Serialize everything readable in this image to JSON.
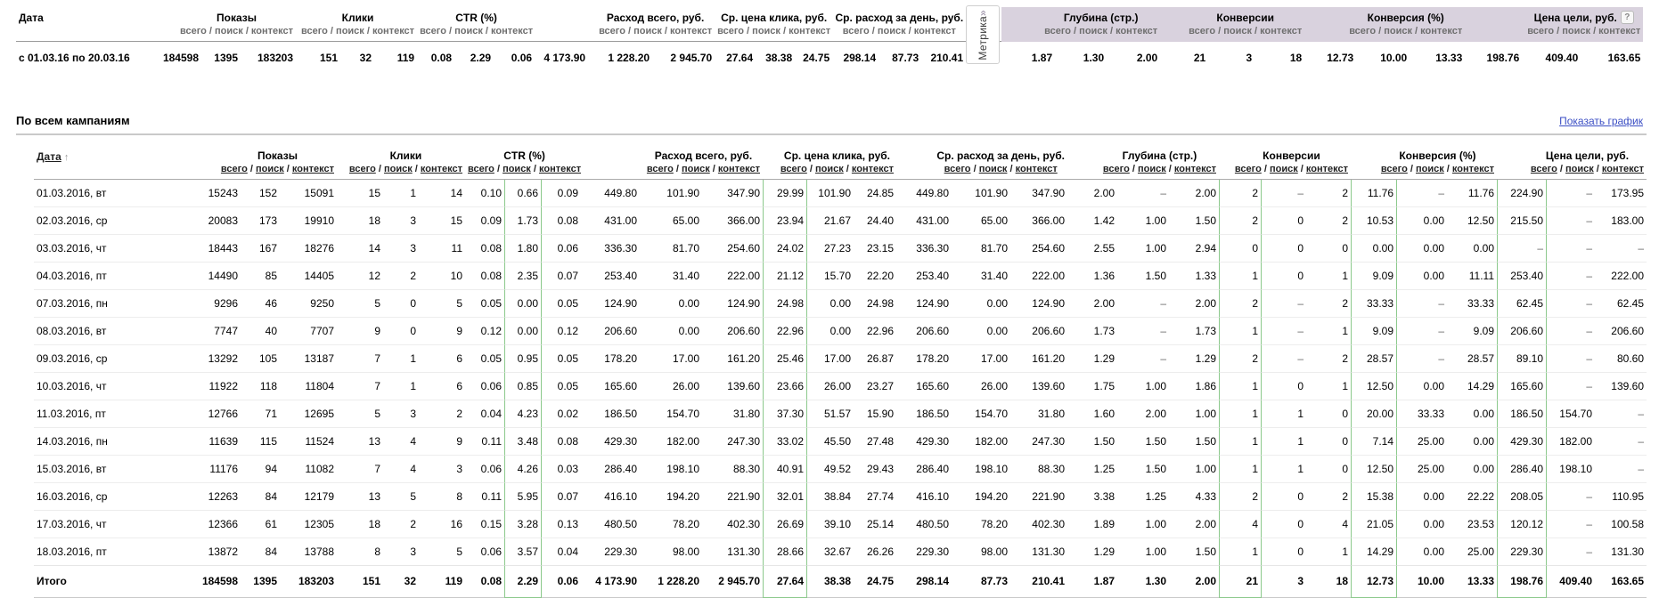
{
  "labels": {
    "date_header": "Дата",
    "sort_arrow": "↑",
    "subheader": {
      "total": "всего",
      "search": "поиск",
      "context": "контекст",
      "separator": " / "
    },
    "section_title": "По всем кампаниям",
    "show_chart_link": "Показать график",
    "metrika_tab": "Метрика",
    "metrika_tab_chevron": "»",
    "help_icon": "?",
    "dash": "–",
    "total_row_label": "Итого"
  },
  "colors": {
    "highlight_green": "#8cc98c",
    "metrika_header_bg": "#d9d2de",
    "link_blue": "#3b4ec4"
  },
  "metrics": [
    {
      "key": "impressions",
      "label": "Показы",
      "metrika": false
    },
    {
      "key": "clicks",
      "label": "Клики",
      "metrika": false
    },
    {
      "key": "ctr",
      "label": "CTR (%)",
      "metrika": false
    },
    {
      "key": "cost-total",
      "label": "Расход всего, руб.",
      "metrika": false
    },
    {
      "key": "avg-click-cost",
      "label": "Ср. цена клика, руб.",
      "metrika": false
    },
    {
      "key": "avg-daily-cost",
      "label": "Ср. расход за день, руб.",
      "metrika": false
    },
    {
      "key": "depth",
      "label": "Глубина (стр.)",
      "metrika": true
    },
    {
      "key": "conversions",
      "label": "Конверсии",
      "metrika": true
    },
    {
      "key": "conversion-rate",
      "label": "Конверсия (%)",
      "metrika": true
    },
    {
      "key": "goal-cost",
      "label": "Цена цели, руб.",
      "metrika": true,
      "has_help": true
    }
  ],
  "summary": {
    "period": "с 01.03.16 по 20.03.16",
    "values": [
      "184598",
      "1395",
      "183203",
      "151",
      "32",
      "119",
      "0.08",
      "2.29",
      "0.06",
      "4 173.90",
      "1 228.20",
      "2 945.70",
      "27.64",
      "38.38",
      "24.75",
      "298.14",
      "87.73",
      "210.41",
      "1.87",
      "1.30",
      "2.00",
      "21",
      "3",
      "18",
      "12.73",
      "10.00",
      "13.33",
      "198.76",
      "409.40",
      "163.65"
    ]
  },
  "table": {
    "highlighted_value_columns": [
      7,
      12,
      21,
      24,
      27
    ],
    "rows": [
      {
        "date": "01.03.2016, вт",
        "values": [
          "15243",
          "152",
          "15091",
          "15",
          "1",
          "14",
          "0.10",
          "0.66",
          "0.09",
          "449.80",
          "101.90",
          "347.90",
          "29.99",
          "101.90",
          "24.85",
          "449.80",
          "101.90",
          "347.90",
          "2.00",
          "–",
          "2.00",
          "2",
          "–",
          "2",
          "11.76",
          "–",
          "11.76",
          "224.90",
          "–",
          "173.95"
        ]
      },
      {
        "date": "02.03.2016, ср",
        "values": [
          "20083",
          "173",
          "19910",
          "18",
          "3",
          "15",
          "0.09",
          "1.73",
          "0.08",
          "431.00",
          "65.00",
          "366.00",
          "23.94",
          "21.67",
          "24.40",
          "431.00",
          "65.00",
          "366.00",
          "1.42",
          "1.00",
          "1.50",
          "2",
          "0",
          "2",
          "10.53",
          "0.00",
          "12.50",
          "215.50",
          "–",
          "183.00"
        ]
      },
      {
        "date": "03.03.2016, чт",
        "values": [
          "18443",
          "167",
          "18276",
          "14",
          "3",
          "11",
          "0.08",
          "1.80",
          "0.06",
          "336.30",
          "81.70",
          "254.60",
          "24.02",
          "27.23",
          "23.15",
          "336.30",
          "81.70",
          "254.60",
          "2.55",
          "1.00",
          "2.94",
          "0",
          "0",
          "0",
          "0.00",
          "0.00",
          "0.00",
          "–",
          "–",
          "–"
        ]
      },
      {
        "date": "04.03.2016, пт",
        "values": [
          "14490",
          "85",
          "14405",
          "12",
          "2",
          "10",
          "0.08",
          "2.35",
          "0.07",
          "253.40",
          "31.40",
          "222.00",
          "21.12",
          "15.70",
          "22.20",
          "253.40",
          "31.40",
          "222.00",
          "1.36",
          "1.50",
          "1.33",
          "1",
          "0",
          "1",
          "9.09",
          "0.00",
          "11.11",
          "253.40",
          "–",
          "222.00"
        ]
      },
      {
        "date": "07.03.2016, пн",
        "values": [
          "9296",
          "46",
          "9250",
          "5",
          "0",
          "5",
          "0.05",
          "0.00",
          "0.05",
          "124.90",
          "0.00",
          "124.90",
          "24.98",
          "0.00",
          "24.98",
          "124.90",
          "0.00",
          "124.90",
          "2.00",
          "–",
          "2.00",
          "2",
          "–",
          "2",
          "33.33",
          "–",
          "33.33",
          "62.45",
          "–",
          "62.45"
        ]
      },
      {
        "date": "08.03.2016, вт",
        "values": [
          "7747",
          "40",
          "7707",
          "9",
          "0",
          "9",
          "0.12",
          "0.00",
          "0.12",
          "206.60",
          "0.00",
          "206.60",
          "22.96",
          "0.00",
          "22.96",
          "206.60",
          "0.00",
          "206.60",
          "1.73",
          "–",
          "1.73",
          "1",
          "–",
          "1",
          "9.09",
          "–",
          "9.09",
          "206.60",
          "–",
          "206.60"
        ]
      },
      {
        "date": "09.03.2016, ср",
        "values": [
          "13292",
          "105",
          "13187",
          "7",
          "1",
          "6",
          "0.05",
          "0.95",
          "0.05",
          "178.20",
          "17.00",
          "161.20",
          "25.46",
          "17.00",
          "26.87",
          "178.20",
          "17.00",
          "161.20",
          "1.29",
          "–",
          "1.29",
          "2",
          "–",
          "2",
          "28.57",
          "–",
          "28.57",
          "89.10",
          "–",
          "80.60"
        ]
      },
      {
        "date": "10.03.2016, чт",
        "values": [
          "11922",
          "118",
          "11804",
          "7",
          "1",
          "6",
          "0.06",
          "0.85",
          "0.05",
          "165.60",
          "26.00",
          "139.60",
          "23.66",
          "26.00",
          "23.27",
          "165.60",
          "26.00",
          "139.60",
          "1.75",
          "1.00",
          "1.86",
          "1",
          "0",
          "1",
          "12.50",
          "0.00",
          "14.29",
          "165.60",
          "–",
          "139.60"
        ]
      },
      {
        "date": "11.03.2016, пт",
        "values": [
          "12766",
          "71",
          "12695",
          "5",
          "3",
          "2",
          "0.04",
          "4.23",
          "0.02",
          "186.50",
          "154.70",
          "31.80",
          "37.30",
          "51.57",
          "15.90",
          "186.50",
          "154.70",
          "31.80",
          "1.60",
          "2.00",
          "1.00",
          "1",
          "1",
          "0",
          "20.00",
          "33.33",
          "0.00",
          "186.50",
          "154.70",
          "–"
        ]
      },
      {
        "date": "14.03.2016, пн",
        "values": [
          "11639",
          "115",
          "11524",
          "13",
          "4",
          "9",
          "0.11",
          "3.48",
          "0.08",
          "429.30",
          "182.00",
          "247.30",
          "33.02",
          "45.50",
          "27.48",
          "429.30",
          "182.00",
          "247.30",
          "1.50",
          "1.50",
          "1.50",
          "1",
          "1",
          "0",
          "7.14",
          "25.00",
          "0.00",
          "429.30",
          "182.00",
          "–"
        ]
      },
      {
        "date": "15.03.2016, вт",
        "values": [
          "11176",
          "94",
          "11082",
          "7",
          "4",
          "3",
          "0.06",
          "4.26",
          "0.03",
          "286.40",
          "198.10",
          "88.30",
          "40.91",
          "49.52",
          "29.43",
          "286.40",
          "198.10",
          "88.30",
          "1.25",
          "1.50",
          "1.00",
          "1",
          "1",
          "0",
          "12.50",
          "25.00",
          "0.00",
          "286.40",
          "198.10",
          "–"
        ]
      },
      {
        "date": "16.03.2016, ср",
        "values": [
          "12263",
          "84",
          "12179",
          "13",
          "5",
          "8",
          "0.11",
          "5.95",
          "0.07",
          "416.10",
          "194.20",
          "221.90",
          "32.01",
          "38.84",
          "27.74",
          "416.10",
          "194.20",
          "221.90",
          "3.38",
          "1.25",
          "4.33",
          "2",
          "0",
          "2",
          "15.38",
          "0.00",
          "22.22",
          "208.05",
          "–",
          "110.95"
        ]
      },
      {
        "date": "17.03.2016, чт",
        "values": [
          "12366",
          "61",
          "12305",
          "18",
          "2",
          "16",
          "0.15",
          "3.28",
          "0.13",
          "480.50",
          "78.20",
          "402.30",
          "26.69",
          "39.10",
          "25.14",
          "480.50",
          "78.20",
          "402.30",
          "1.89",
          "1.00",
          "2.00",
          "4",
          "0",
          "4",
          "21.05",
          "0.00",
          "23.53",
          "120.12",
          "–",
          "100.58"
        ]
      },
      {
        "date": "18.03.2016, пт",
        "values": [
          "13872",
          "84",
          "13788",
          "8",
          "3",
          "5",
          "0.06",
          "3.57",
          "0.04",
          "229.30",
          "98.00",
          "131.30",
          "28.66",
          "32.67",
          "26.26",
          "229.30",
          "98.00",
          "131.30",
          "1.29",
          "1.00",
          "1.50",
          "1",
          "0",
          "1",
          "14.29",
          "0.00",
          "25.00",
          "229.30",
          "–",
          "131.30"
        ]
      }
    ],
    "total_row": {
      "date": "Итого",
      "values": [
        "184598",
        "1395",
        "183203",
        "151",
        "32",
        "119",
        "0.08",
        "2.29",
        "0.06",
        "4 173.90",
        "1 228.20",
        "2 945.70",
        "27.64",
        "38.38",
        "24.75",
        "298.14",
        "87.73",
        "210.41",
        "1.87",
        "1.30",
        "2.00",
        "21",
        "3",
        "18",
        "12.73",
        "10.00",
        "13.33",
        "198.76",
        "409.40",
        "163.65"
      ]
    }
  }
}
